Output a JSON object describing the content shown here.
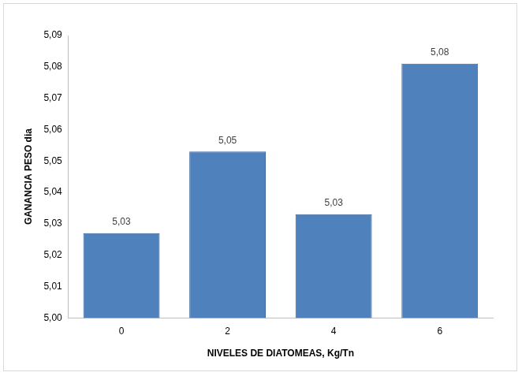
{
  "chart_data": {
    "type": "bar",
    "x_label": "NIVELES DE DIATOMEAS, Kg/Tn",
    "y_label": "GANANCIA PESO dia",
    "categories": [
      "0",
      "2",
      "4",
      "6"
    ],
    "values": [
      5.027,
      5.053,
      5.033,
      5.081
    ],
    "value_labels": [
      "5,03",
      "5,05",
      "5,03",
      "5,08"
    ],
    "data_labels": true,
    "color": "#4f81bd",
    "ylim": [
      5.0,
      5.09
    ],
    "yticks": [
      {
        "value": 5.0,
        "label": "5,00"
      },
      {
        "value": 5.01,
        "label": "5,01"
      },
      {
        "value": 5.02,
        "label": "5,02"
      },
      {
        "value": 5.03,
        "label": "5,03"
      },
      {
        "value": 5.04,
        "label": "5,04"
      },
      {
        "value": 5.05,
        "label": "5,05"
      },
      {
        "value": 5.06,
        "label": "5,06"
      },
      {
        "value": 5.07,
        "label": "5,07"
      },
      {
        "value": 5.08,
        "label": "5,08"
      },
      {
        "value": 5.09,
        "label": "5,09"
      }
    ],
    "grid": false
  }
}
